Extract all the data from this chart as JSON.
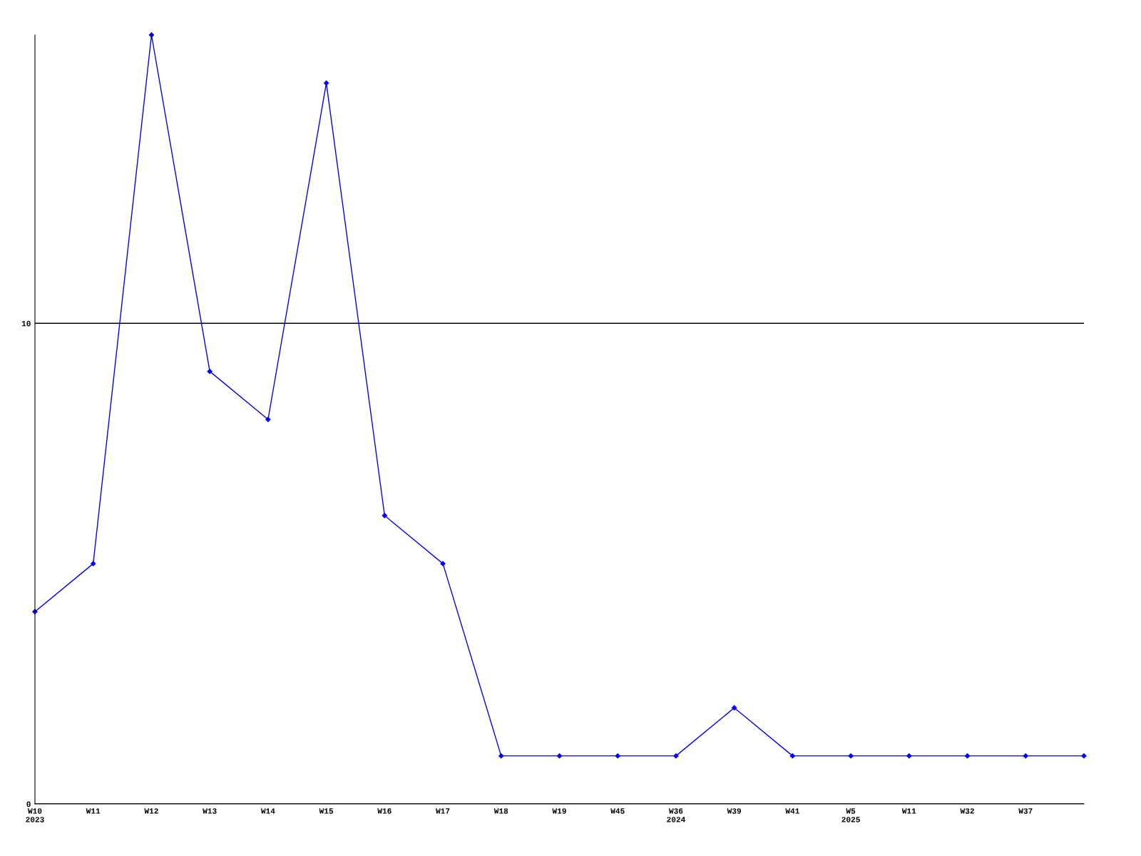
{
  "chart_data": {
    "type": "line",
    "categories": [
      "W10\n2023",
      "W11",
      "W12",
      "W13",
      "W14",
      "W15",
      "W16",
      "W17",
      "W18",
      "W19",
      "W45",
      "W36\n2024",
      "W39",
      "W41",
      "W5\n2025",
      "W11",
      "W32",
      "W37",
      null
    ],
    "series": [
      {
        "color": "#0000ff",
        "values": [
          4,
          5,
          16,
          9,
          8,
          15,
          6,
          5,
          1,
          1,
          1,
          1,
          2,
          1,
          1,
          1,
          1,
          1,
          1
        ]
      }
    ],
    "ylim": [
      0,
      16
    ],
    "yticks": [
      0,
      10
    ],
    "grid": "y",
    "marker": "diamond",
    "line_style": "solid"
  }
}
